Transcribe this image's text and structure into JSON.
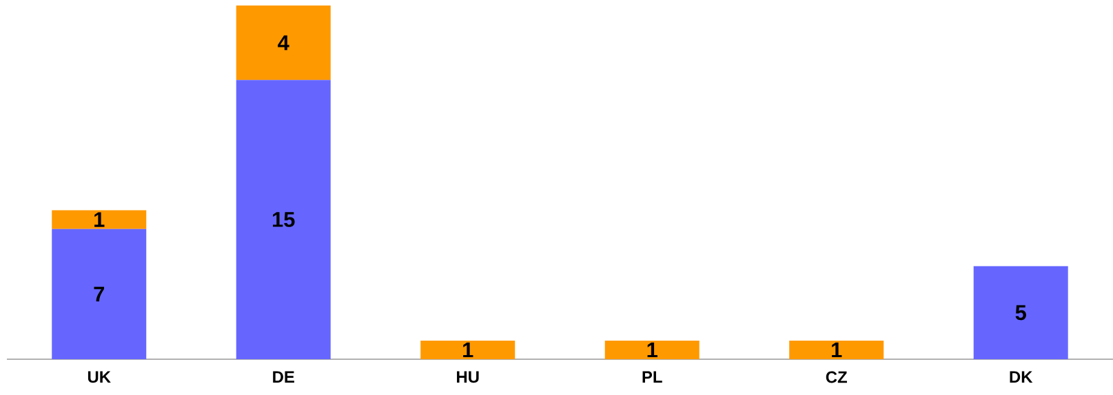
{
  "chart_data": {
    "type": "bar",
    "stacked": true,
    "data_labels": true,
    "categories": [
      "UK",
      "DE",
      "HU",
      "PL",
      "CZ",
      "DK"
    ],
    "series": [
      {
        "color": "#6666ff",
        "values": [
          7,
          15,
          null,
          null,
          null,
          5
        ]
      },
      {
        "color": "#ff9900",
        "values": [
          1,
          4,
          1,
          1,
          1,
          null
        ]
      }
    ]
  }
}
